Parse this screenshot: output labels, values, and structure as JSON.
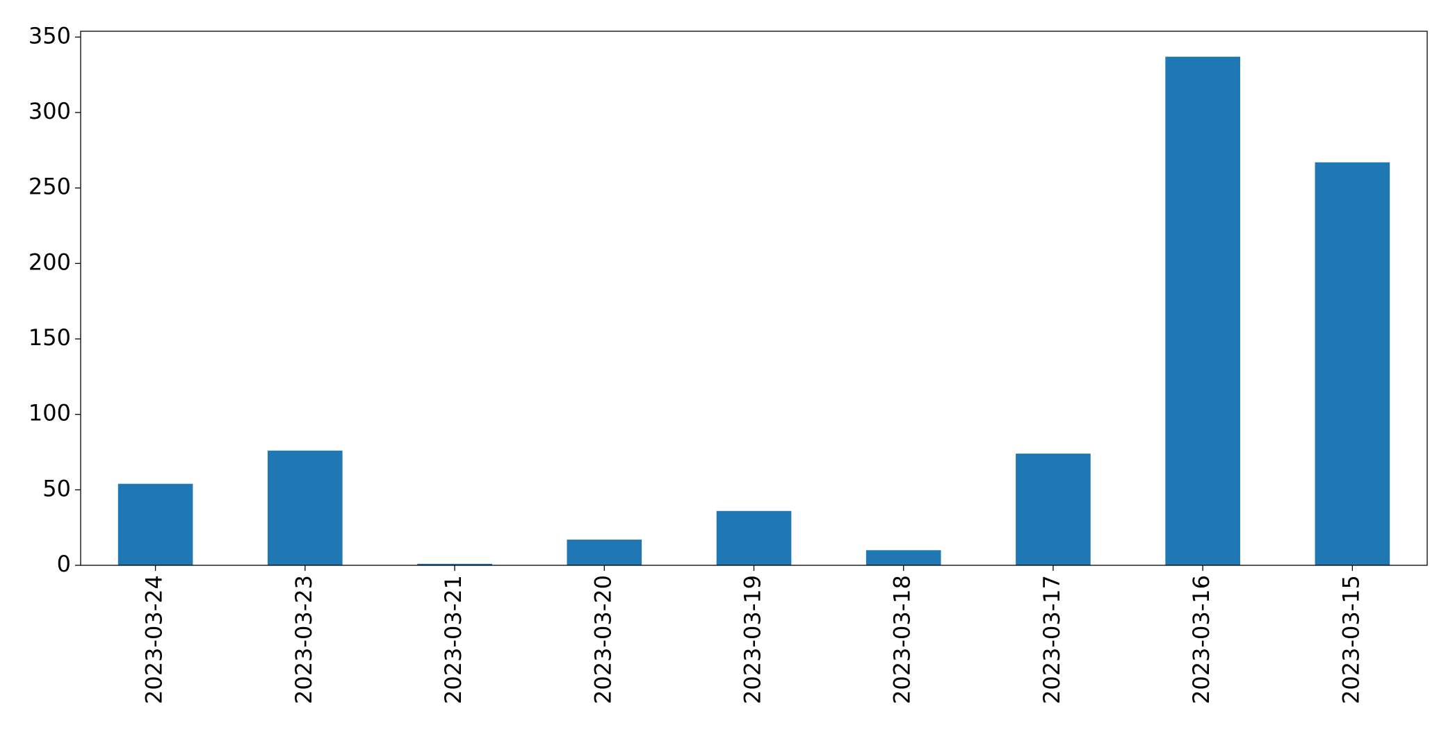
{
  "chart_data": {
    "type": "bar",
    "categories": [
      "2023-03-24",
      "2023-03-23",
      "2023-03-21",
      "2023-03-20",
      "2023-03-19",
      "2023-03-18",
      "2023-03-17",
      "2023-03-16",
      "2023-03-15"
    ],
    "values": [
      54,
      76,
      1,
      17,
      36,
      10,
      74,
      337,
      267
    ],
    "color": "#1f77b4",
    "ylim": [
      0,
      353.85
    ],
    "yticks": [
      0,
      50,
      100,
      150,
      200,
      250,
      300,
      350
    ],
    "grid": false
  }
}
